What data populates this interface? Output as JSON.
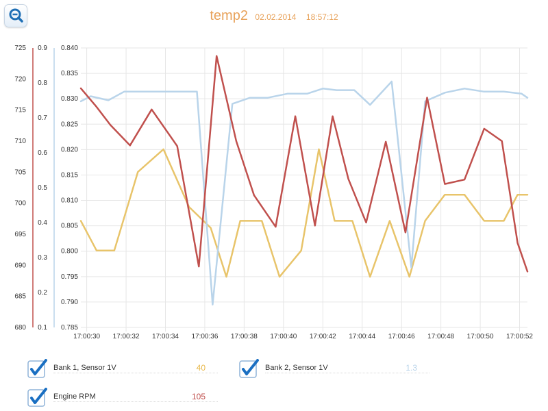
{
  "header": {
    "title": "temp2",
    "date": "02.02.2014",
    "time": "18:57:12"
  },
  "toolbar": {
    "zoom_icon": "zoom-out-icon"
  },
  "colors": {
    "bank1": "#e8c46a",
    "bank2": "#b9d4ea",
    "rpm": "#c0504d",
    "grid": "#e6e6e6",
    "title": "#e8a25a"
  },
  "legend": [
    {
      "label": "Bank 1, Sensor 1V",
      "value": "40",
      "color": "#e8b84a"
    },
    {
      "label": "Bank 2, Sensor 1V",
      "value": "1.3",
      "color": "#b9d4ea"
    },
    {
      "label": "Engine RPM",
      "value": "105",
      "color": "#c0504d"
    }
  ],
  "chart_data": {
    "type": "line",
    "title": "temp2",
    "x_ticks": [
      "17:00:30",
      "17:00:32",
      "17:00:34",
      "17:00:36",
      "17:00:38",
      "17:00:40",
      "17:00:42",
      "17:00:44",
      "17:00:46",
      "17:00:48",
      "17:00:50",
      "17:00:52"
    ],
    "x_range": [
      "17:00:29.7",
      "17:00:52.4"
    ],
    "axes": [
      {
        "id": "rpm",
        "range": [
          680,
          725
        ],
        "ticks": [
          "680",
          "685",
          "690",
          "695",
          "700",
          "705",
          "710",
          "715",
          "720",
          "725"
        ],
        "color": "#c0504d"
      },
      {
        "id": "bank1",
        "range": [
          0.1,
          0.9
        ],
        "ticks": [
          "0.1",
          "0.2",
          "0.3",
          "0.4",
          "0.5",
          "0.6",
          "0.7",
          "0.8",
          "0.9"
        ],
        "color": "#b9d4ea"
      },
      {
        "id": "bank2",
        "range": [
          0.785,
          0.84
        ],
        "ticks": [
          "0.785",
          "0.790",
          "0.795",
          "0.800",
          "0.805",
          "0.810",
          "0.815",
          "0.820",
          "0.825",
          "0.830",
          "0.835",
          "0.840"
        ],
        "color": "#999999"
      }
    ],
    "grid": true,
    "series": [
      {
        "name": "Bank 1, Sensor 1V",
        "axis": "bank1",
        "color": "#e8c46a",
        "points": [
          [
            "17:00:29.7",
            0.405
          ],
          [
            "17:00:30.5",
            0.32
          ],
          [
            "17:00:31.4",
            0.32
          ],
          [
            "17:00:32.6",
            0.545
          ],
          [
            "17:00:33.9",
            0.61
          ],
          [
            "17:00:35.2",
            0.445
          ],
          [
            "17:00:36.3",
            0.385
          ],
          [
            "17:00:37.1",
            0.245
          ],
          [
            "17:00:37.8",
            0.405
          ],
          [
            "17:00:38.9",
            0.405
          ],
          [
            "17:00:39.8",
            0.245
          ],
          [
            "17:00:40.9",
            0.32
          ],
          [
            "17:00:41.8",
            0.61
          ],
          [
            "17:00:42.6",
            0.405
          ],
          [
            "17:00:43.5",
            0.405
          ],
          [
            "17:00:44.4",
            0.245
          ],
          [
            "17:00:45.4",
            0.405
          ],
          [
            "17:00:46.4",
            0.245
          ],
          [
            "17:00:47.2",
            0.405
          ],
          [
            "17:00:48.2",
            0.48
          ],
          [
            "17:00:49.2",
            0.48
          ],
          [
            "17:00:50.2",
            0.405
          ],
          [
            "17:00:51.2",
            0.405
          ],
          [
            "17:00:51.9",
            0.48
          ],
          [
            "17:00:52.4",
            0.48
          ]
        ]
      },
      {
        "name": "Bank 2, Sensor 1V",
        "axis": "bank2",
        "color": "#b9d4ea",
        "points": [
          [
            "17:00:29.7",
            0.8295
          ],
          [
            "17:00:30.2",
            0.8305
          ],
          [
            "17:00:31.1",
            0.8297
          ],
          [
            "17:00:31.9",
            0.8314
          ],
          [
            "17:00:34.2",
            0.8314
          ],
          [
            "17:00:35.6",
            0.8314
          ],
          [
            "17:00:36.4",
            0.7895
          ],
          [
            "17:00:37.4",
            0.829
          ],
          [
            "17:00:38.3",
            0.8302
          ],
          [
            "17:00:39.2",
            0.8302
          ],
          [
            "17:00:40.2",
            0.831
          ],
          [
            "17:00:41.2",
            0.831
          ],
          [
            "17:00:42.0",
            0.832
          ],
          [
            "17:00:42.7",
            0.8317
          ],
          [
            "17:00:43.6",
            0.8317
          ],
          [
            "17:00:44.4",
            0.8288
          ],
          [
            "17:00:45.5",
            0.8334
          ],
          [
            "17:00:46.5",
            0.7968
          ],
          [
            "17:00:47.2",
            0.8295
          ],
          [
            "17:00:48.2",
            0.8312
          ],
          [
            "17:00:49.2",
            0.832
          ],
          [
            "17:00:50.2",
            0.8314
          ],
          [
            "17:00:51.2",
            0.8314
          ],
          [
            "17:00:52.1",
            0.831
          ],
          [
            "17:00:52.4",
            0.8302
          ]
        ]
      },
      {
        "name": "Engine RPM",
        "axis": "rpm",
        "color": "#c0504d",
        "points": [
          [
            "17:00:29.7",
            718.5
          ],
          [
            "17:00:30.5",
            715.5
          ],
          [
            "17:00:31.2",
            712.6
          ],
          [
            "17:00:32.2",
            709.3
          ],
          [
            "17:00:33.3",
            715.1
          ],
          [
            "17:00:34.6",
            709.2
          ],
          [
            "17:00:35.7",
            689.8
          ],
          [
            "17:00:36.6",
            723.7
          ],
          [
            "17:00:37.6",
            710.0
          ],
          [
            "17:00:38.5",
            701.3
          ],
          [
            "17:00:39.6",
            696.2
          ],
          [
            "17:00:40.6",
            714.0
          ],
          [
            "17:00:41.6",
            696.4
          ],
          [
            "17:00:42.5",
            714.0
          ],
          [
            "17:00:43.3",
            703.9
          ],
          [
            "17:00:44.2",
            696.9
          ],
          [
            "17:00:45.2",
            709.9
          ],
          [
            "17:00:46.2",
            695.3
          ],
          [
            "17:00:47.3",
            717.0
          ],
          [
            "17:00:48.2",
            703.1
          ],
          [
            "17:00:49.2",
            703.8
          ],
          [
            "17:00:50.2",
            712.0
          ],
          [
            "17:00:51.1",
            710.0
          ],
          [
            "17:00:51.9",
            693.6
          ],
          [
            "17:00:52.4",
            689.0
          ]
        ]
      }
    ]
  }
}
